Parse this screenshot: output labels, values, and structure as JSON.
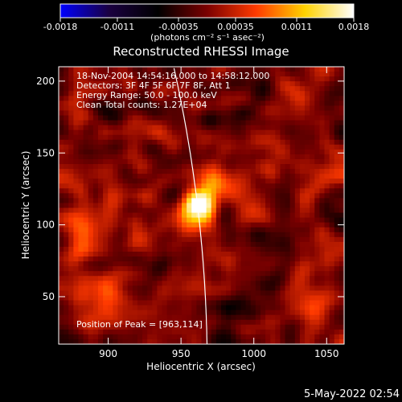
{
  "chart_data": {
    "type": "heatmap",
    "title": "Reconstructed RHESSI Image",
    "colorbar": {
      "ticks": [
        "-0.0018",
        "-0.0011",
        "-0.00035",
        "0.00035",
        "0.0011",
        "0.0018"
      ],
      "range": [
        -0.0018,
        0.0018
      ],
      "unit_label": "(photons cm⁻² s⁻¹ asec⁻²)",
      "colormap": [
        "#0000ff",
        "#1a0040",
        "#000000",
        "#7a0000",
        "#ff3a00",
        "#ffd200",
        "#ffffff"
      ]
    },
    "xlabel": "Heliocentric X (arcsec)",
    "ylabel": "Heliocentric Y (arcsec)",
    "x_ticks": [
      "900",
      "950",
      "1000",
      "1050"
    ],
    "y_ticks": [
      "50",
      "100",
      "150",
      "200"
    ],
    "xlim": [
      866,
      1062
    ],
    "ylim": [
      17,
      210
    ],
    "info_lines": [
      "18-Nov-2004 14:54:16.000 to 14:58:12.000",
      "Detectors: 3F 4F 5F 6F 7F 8F, Att 1",
      "Energy Range: 50.0 - 100.0 keV",
      "Clean     Total counts: 1.27E+04"
    ],
    "peak_label": "Position of Peak = [963,114]",
    "peak": {
      "x": 963,
      "y": 114,
      "value": 0.0018
    },
    "secondary_sources": [
      {
        "x": 972,
        "y": 130,
        "value": 0.0008
      },
      {
        "x": 960,
        "y": 100,
        "value": 0.0005
      },
      {
        "x": 885,
        "y": 100,
        "value": 0.0006
      },
      {
        "x": 900,
        "y": 55,
        "value": 0.0005
      },
      {
        "x": 1045,
        "y": 45,
        "value": 0.0005
      }
    ],
    "grid": false
  },
  "timestamp": "5-May-2022 02:54"
}
